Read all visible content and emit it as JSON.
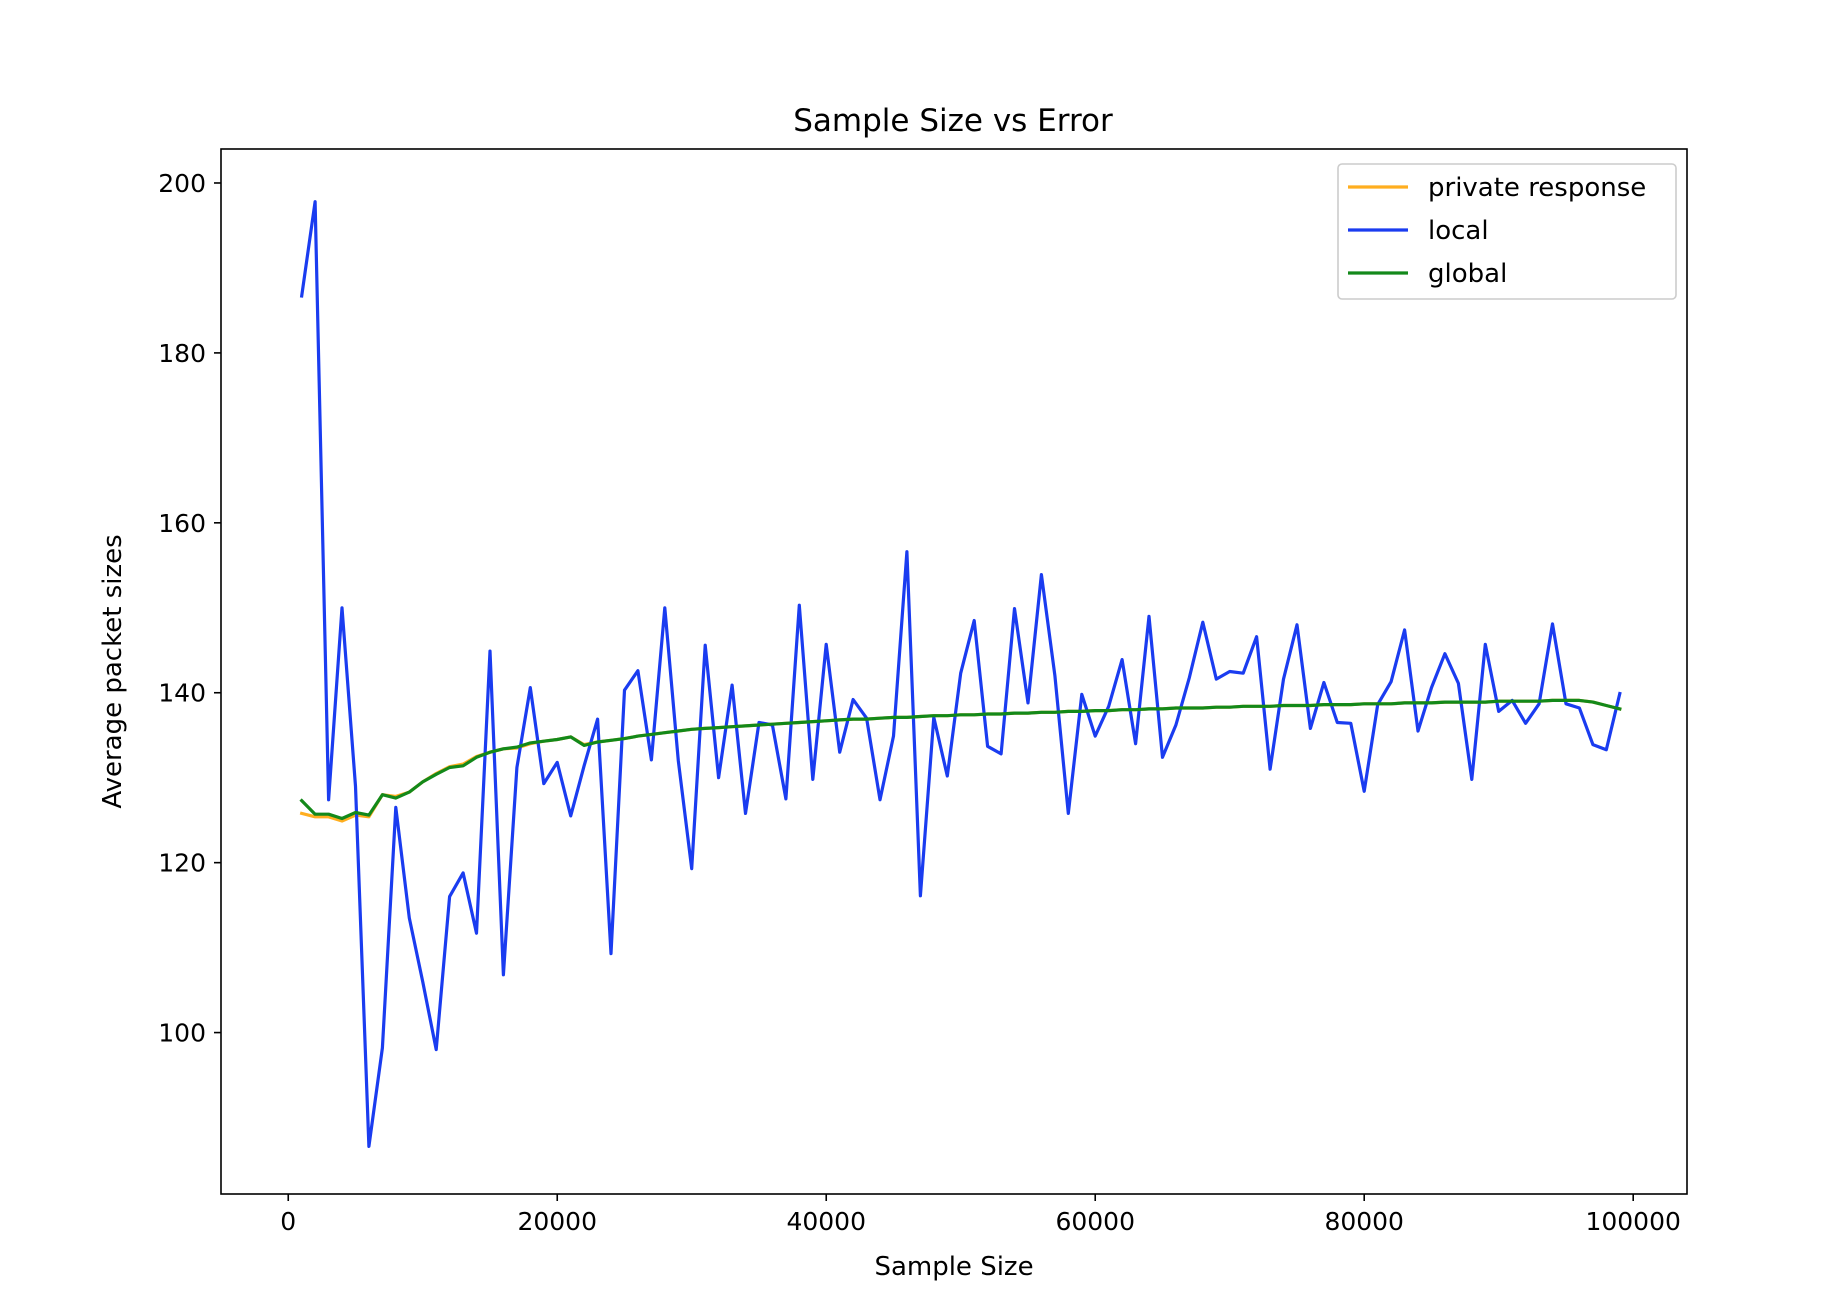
{
  "chart_data": {
    "type": "line",
    "title": "Sample Size vs Error",
    "xlabel": "Sample Size",
    "ylabel": "Average packet sizes",
    "xlim": [
      -5000,
      104000
    ],
    "ylim": [
      81,
      204
    ],
    "xticks": [
      0,
      20000,
      40000,
      60000,
      80000,
      100000
    ],
    "xtick_labels": [
      "0",
      "20000",
      "40000",
      "60000",
      "80000",
      "100000"
    ],
    "yticks": [
      100,
      120,
      140,
      160,
      180,
      200
    ],
    "ytick_labels": [
      "100",
      "120",
      "140",
      "160",
      "180",
      "200"
    ],
    "grid": false,
    "legend_position": "top-right",
    "x": [
      1000,
      2000,
      3000,
      4000,
      5000,
      6000,
      7000,
      8000,
      9000,
      10000,
      11000,
      12000,
      13000,
      14000,
      15000,
      16000,
      17000,
      18000,
      19000,
      20000,
      21000,
      22000,
      23000,
      24000,
      25000,
      26000,
      27000,
      28000,
      29000,
      30000,
      31000,
      32000,
      33000,
      34000,
      35000,
      36000,
      37000,
      38000,
      39000,
      40000,
      41000,
      42000,
      43000,
      44000,
      45000,
      46000,
      47000,
      48000,
      49000,
      50000,
      51000,
      52000,
      53000,
      54000,
      55000,
      56000,
      57000,
      58000,
      59000,
      60000,
      61000,
      62000,
      63000,
      64000,
      65000,
      66000,
      67000,
      68000,
      69000,
      70000,
      71000,
      72000,
      73000,
      74000,
      75000,
      76000,
      77000,
      78000,
      79000,
      80000,
      81000,
      82000,
      83000,
      84000,
      85000,
      86000,
      87000,
      88000,
      89000,
      90000,
      91000,
      92000,
      93000,
      94000,
      95000,
      96000,
      97000,
      98000,
      99000
    ],
    "series": [
      {
        "name": "private response",
        "color": "#ffae1f",
        "values": [
          125.8,
          125.4,
          125.4,
          124.9,
          125.6,
          125.4,
          128.0,
          127.8,
          128.3,
          129.5,
          130.5,
          131.3,
          131.6,
          132.5,
          133.0,
          133.4,
          133.5,
          134.0,
          134.3,
          134.5,
          134.8,
          133.9,
          134.2,
          134.4,
          134.6,
          134.9,
          135.1,
          135.3,
          135.5,
          135.7,
          135.8,
          135.9,
          136.0,
          136.1,
          136.2,
          136.3,
          136.4,
          136.5,
          136.6,
          136.7,
          136.8,
          136.9,
          136.9,
          137.0,
          137.1,
          137.1,
          137.2,
          137.3,
          137.3,
          137.4,
          137.4,
          137.5,
          137.5,
          137.6,
          137.6,
          137.7,
          137.7,
          137.8,
          137.8,
          137.9,
          137.9,
          138.0,
          138.0,
          138.1,
          138.1,
          138.2,
          138.2,
          138.2,
          138.3,
          138.3,
          138.4,
          138.4,
          138.4,
          138.5,
          138.5,
          138.5,
          138.6,
          138.6,
          138.6,
          138.7,
          138.7,
          138.7,
          138.8,
          138.8,
          138.8,
          138.9,
          138.9,
          138.9,
          138.9,
          139.0,
          139.0,
          139.0,
          139.0,
          139.1,
          139.1,
          139.1,
          138.9,
          138.5,
          138.1
        ]
      },
      {
        "name": "local",
        "color": "#1a3cf0",
        "values": [
          186.7,
          197.8,
          127.4,
          150.0,
          129.0,
          86.6,
          98.2,
          126.5,
          113.5,
          106.0,
          98.0,
          116.0,
          118.8,
          111.7,
          144.9,
          106.8,
          131.2,
          140.6,
          129.3,
          131.8,
          125.5,
          131.4,
          136.9,
          109.3,
          140.3,
          142.6,
          132.1,
          150.0,
          132.0,
          119.3,
          145.6,
          130.0,
          140.9,
          125.8,
          136.5,
          136.2,
          127.5,
          150.3,
          129.8,
          145.7,
          133.0,
          139.2,
          137.0,
          127.4,
          134.9,
          156.6,
          116.1,
          137.1,
          130.2,
          142.3,
          148.5,
          133.7,
          132.8,
          149.9,
          138.8,
          153.9,
          142.0,
          125.8,
          139.8,
          134.9,
          138.4,
          143.9,
          134.0,
          149.0,
          132.4,
          136.2,
          141.8,
          148.3,
          141.6,
          142.5,
          142.3,
          146.6,
          131.0,
          141.6,
          148.0,
          135.8,
          141.2,
          136.5,
          136.4,
          128.4,
          138.6,
          141.3,
          147.4,
          135.5,
          140.6,
          144.6,
          141.1,
          129.8,
          145.7,
          137.8,
          139.1,
          136.4,
          138.7,
          148.1,
          138.7,
          138.2,
          133.9,
          133.3,
          139.9
        ]
      },
      {
        "name": "global",
        "color": "#13891a",
        "values": [
          127.3,
          125.7,
          125.7,
          125.2,
          125.9,
          125.6,
          128.0,
          127.6,
          128.3,
          129.5,
          130.4,
          131.2,
          131.4,
          132.4,
          133.0,
          133.4,
          133.6,
          134.1,
          134.3,
          134.5,
          134.8,
          133.8,
          134.2,
          134.4,
          134.6,
          134.9,
          135.1,
          135.3,
          135.5,
          135.7,
          135.8,
          135.9,
          136.0,
          136.1,
          136.2,
          136.3,
          136.4,
          136.5,
          136.6,
          136.7,
          136.8,
          136.9,
          136.9,
          137.0,
          137.1,
          137.1,
          137.2,
          137.3,
          137.3,
          137.4,
          137.4,
          137.5,
          137.5,
          137.6,
          137.6,
          137.7,
          137.7,
          137.8,
          137.8,
          137.9,
          137.9,
          138.0,
          138.0,
          138.1,
          138.1,
          138.2,
          138.2,
          138.2,
          138.3,
          138.3,
          138.4,
          138.4,
          138.4,
          138.5,
          138.5,
          138.5,
          138.6,
          138.6,
          138.6,
          138.7,
          138.7,
          138.7,
          138.8,
          138.8,
          138.8,
          138.9,
          138.9,
          138.9,
          138.9,
          139.0,
          139.0,
          139.0,
          139.0,
          139.1,
          139.1,
          139.1,
          138.9,
          138.5,
          138.1
        ]
      }
    ]
  }
}
